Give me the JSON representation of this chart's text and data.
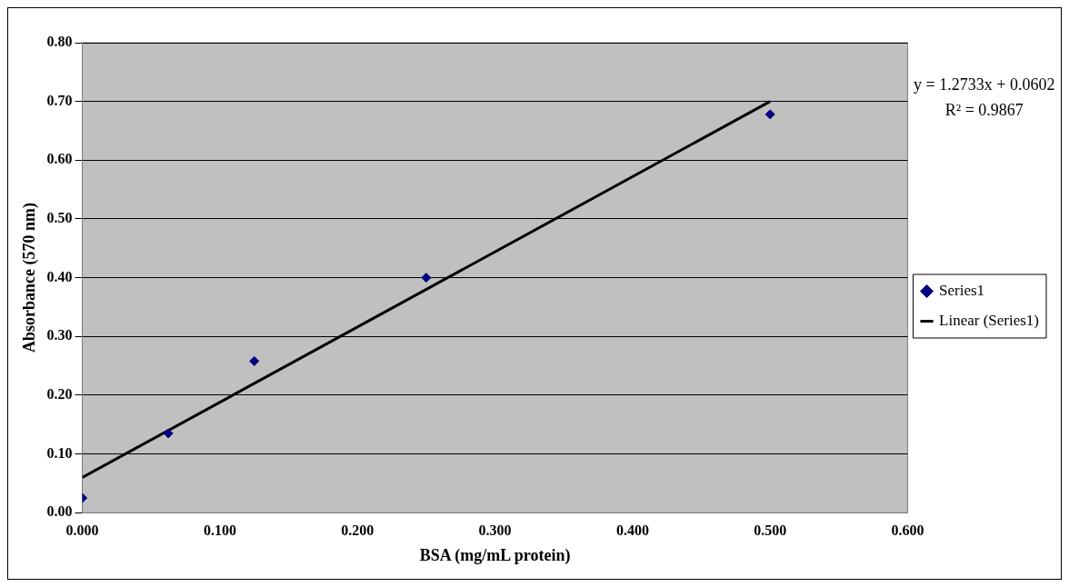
{
  "chart_data": {
    "type": "scatter",
    "xlabel": "BSA (mg/mL protein)",
    "ylabel": "Absorbance (570 nm)",
    "x": [
      0,
      0.0625,
      0.125,
      0.25,
      0.5
    ],
    "series": [
      {
        "name": "Series1",
        "type": "scatter",
        "color": "#000080",
        "marker": "diamond",
        "values": [
          0.025,
          0.135,
          0.258,
          0.4,
          0.678
        ]
      },
      {
        "name": "Linear (Series1)",
        "type": "line",
        "color": "#000000",
        "marker": "none",
        "x": [
          0,
          0.5
        ],
        "values": [
          0.06,
          0.7
        ]
      }
    ],
    "xlim": [
      0,
      0.6
    ],
    "xticks": [
      {
        "value": 0,
        "label": "0.000"
      },
      {
        "value": 0.1,
        "label": "0.100"
      },
      {
        "value": 0.2,
        "label": "0.200"
      },
      {
        "value": 0.3,
        "label": "0.300"
      },
      {
        "value": 0.4,
        "label": "0.400"
      },
      {
        "value": 0.5,
        "label": "0.500"
      },
      {
        "value": 0.6,
        "label": "0.600"
      }
    ],
    "ylim": [
      0,
      0.8
    ],
    "yticks": [
      {
        "value": 0,
        "label": "0.00"
      },
      {
        "value": 0.1,
        "label": "0.10"
      },
      {
        "value": 0.2,
        "label": "0.20"
      },
      {
        "value": 0.3,
        "label": "0.30"
      },
      {
        "value": 0.4,
        "label": "0.40"
      },
      {
        "value": 0.5,
        "label": "0.50"
      },
      {
        "value": 0.6,
        "label": "0.60"
      },
      {
        "value": 0.7,
        "label": "0.70"
      },
      {
        "value": 0.8,
        "label": "0.80"
      }
    ],
    "grid": "y",
    "legend": "right",
    "annotations": [
      "y = 1.2733x + 0.0602",
      "R² = 0.9867"
    ]
  }
}
